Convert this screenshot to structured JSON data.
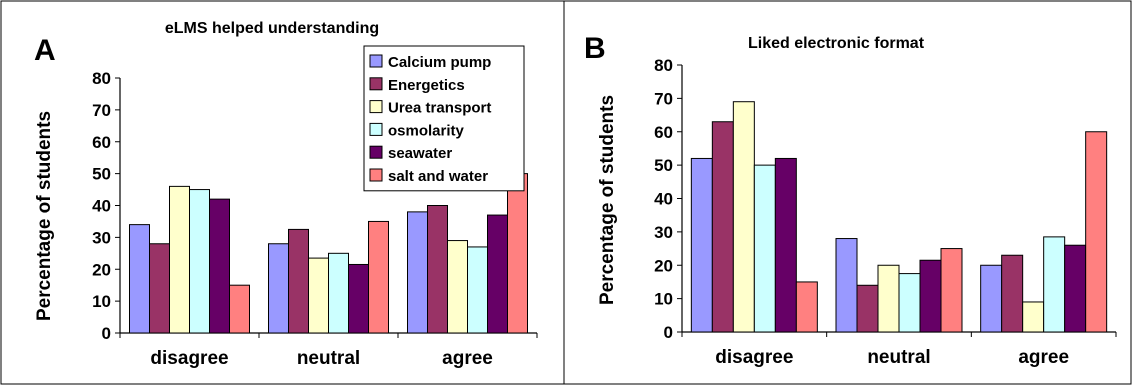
{
  "chart_data": [
    {
      "panel_letter": "A",
      "type": "bar",
      "title": "eLMS helped understanding",
      "ylabel": "Percentage of students",
      "xlabel": "",
      "ylim": [
        0,
        80
      ],
      "yticks": [
        0,
        10,
        20,
        30,
        40,
        50,
        60,
        70,
        80
      ],
      "grid": false,
      "legend": "top-right",
      "categories": [
        "disagree",
        "neutral",
        "agree"
      ],
      "series": [
        {
          "name": "Calcium pump",
          "color": "#9999ff",
          "values": [
            34,
            28,
            38
          ]
        },
        {
          "name": "Energetics",
          "color": "#993366",
          "values": [
            28,
            32.5,
            40
          ]
        },
        {
          "name": "Urea transport",
          "color": "#ffffcc",
          "values": [
            46,
            23.5,
            29
          ]
        },
        {
          "name": "osmolarity",
          "color": "#ccffff",
          "values": [
            45,
            25,
            27
          ]
        },
        {
          "name": "seawater",
          "color": "#660066",
          "values": [
            42,
            21.5,
            37
          ]
        },
        {
          "name": "salt and water",
          "color": "#ff8080",
          "values": [
            15,
            35,
            50
          ]
        }
      ]
    },
    {
      "panel_letter": "B",
      "type": "bar",
      "title": "Liked electronic format",
      "ylabel": "Percentage of students",
      "xlabel": "",
      "ylim": [
        0,
        80
      ],
      "yticks": [
        0,
        10,
        20,
        30,
        40,
        50,
        60,
        70,
        80
      ],
      "grid": false,
      "categories": [
        "disagree",
        "neutral",
        "agree"
      ],
      "series": [
        {
          "name": "Calcium pump",
          "color": "#9999ff",
          "values": [
            52,
            28,
            20
          ]
        },
        {
          "name": "Energetics",
          "color": "#993366",
          "values": [
            63,
            14,
            23
          ]
        },
        {
          "name": "Urea transport",
          "color": "#ffffcc",
          "values": [
            69,
            20,
            9
          ]
        },
        {
          "name": "osmolarity",
          "color": "#ccffff",
          "values": [
            50,
            17.5,
            28.5
          ]
        },
        {
          "name": "seawater",
          "color": "#660066",
          "values": [
            52,
            21.5,
            26
          ]
        },
        {
          "name": "salt and water",
          "color": "#ff8080",
          "values": [
            15,
            25,
            60
          ]
        }
      ]
    }
  ]
}
